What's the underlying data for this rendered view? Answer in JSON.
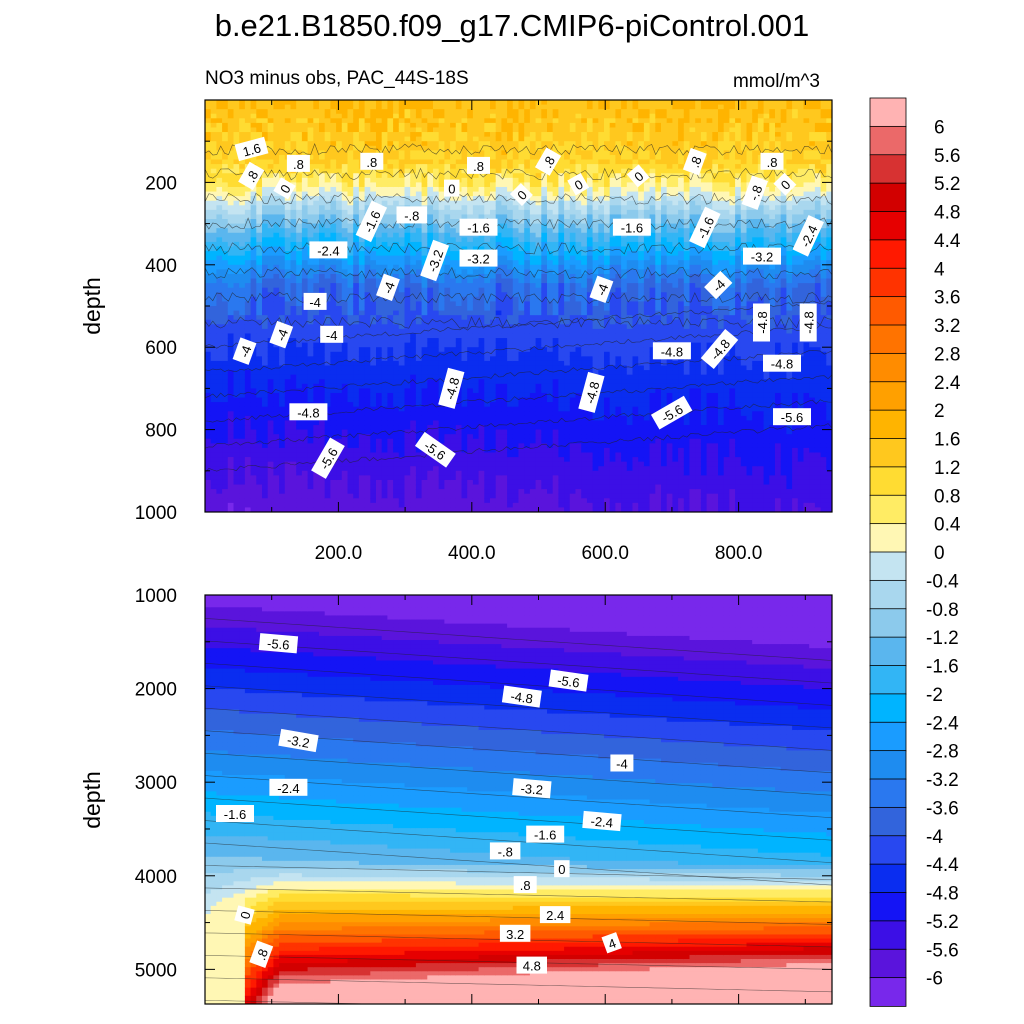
{
  "figure": {
    "title": "b.e21.B1850.f09_g17.CMIP6-piControl.001",
    "subtitle_left": "NO3 minus obs, PAC_44S-18S",
    "subtitle_right": "mmol/m^3"
  },
  "chart_data": [
    {
      "type": "heatmap",
      "panel": "upper",
      "title": "NO3 minus obs, PAC_44S-18S",
      "units": "mmol/m^3",
      "ylabel": "depth",
      "xlabel": "",
      "x_ticks": [
        "200.0",
        "400.0",
        "600.0",
        "800.0"
      ],
      "y_ticks": [
        "200",
        "400",
        "600",
        "800",
        "1000"
      ],
      "xlim": [
        0,
        940
      ],
      "ylim": [
        1000,
        0
      ],
      "profile": [
        {
          "depth": 0,
          "value": 1.6
        },
        {
          "depth": 150,
          "value": 1.2
        },
        {
          "depth": 210,
          "value": 0.4
        },
        {
          "depth": 250,
          "value": -0.4
        },
        {
          "depth": 300,
          "value": -1.2
        },
        {
          "depth": 350,
          "value": -2.0
        },
        {
          "depth": 400,
          "value": -2.8
        },
        {
          "depth": 450,
          "value": -3.6
        },
        {
          "depth": 520,
          "value": -4.0
        },
        {
          "depth": 600,
          "value": -4.4
        },
        {
          "depth": 700,
          "value": -4.8
        },
        {
          "depth": 800,
          "value": -5.2
        },
        {
          "depth": 900,
          "value": -5.6
        },
        {
          "depth": 1000,
          "value": -5.9
        }
      ],
      "contour_labels": [
        {
          "x": 70,
          "depth": 120,
          "text": "1.6",
          "rotate": -15
        },
        {
          "x": 70,
          "depth": 185,
          "text": ".8",
          "rotate": -60
        },
        {
          "x": 140,
          "depth": 155,
          "text": ".8",
          "rotate": 0
        },
        {
          "x": 250,
          "depth": 150,
          "text": ".8",
          "rotate": 0
        },
        {
          "x": 410,
          "depth": 160,
          "text": ".8",
          "rotate": 0
        },
        {
          "x": 515,
          "depth": 150,
          "text": ".8",
          "rotate": -60
        },
        {
          "x": 735,
          "depth": 150,
          "text": ".8",
          "rotate": -70
        },
        {
          "x": 850,
          "depth": 150,
          "text": ".8",
          "rotate": 0
        },
        {
          "x": 120,
          "depth": 215,
          "text": "0",
          "rotate": -60
        },
        {
          "x": 370,
          "depth": 215,
          "text": "0",
          "rotate": 0
        },
        {
          "x": 475,
          "depth": 230,
          "text": "0",
          "rotate": -45
        },
        {
          "x": 560,
          "depth": 205,
          "text": "0",
          "rotate": -30
        },
        {
          "x": 650,
          "depth": 185,
          "text": "0",
          "rotate": -40
        },
        {
          "x": 870,
          "depth": 205,
          "text": "0",
          "rotate": -45
        },
        {
          "x": 825,
          "depth": 225,
          "text": "-.8",
          "rotate": -70
        },
        {
          "x": 310,
          "depth": 280,
          "text": "-.8",
          "rotate": 0
        },
        {
          "x": 250,
          "depth": 295,
          "text": "-1.6",
          "rotate": -65
        },
        {
          "x": 410,
          "depth": 310,
          "text": "-1.6",
          "rotate": 0
        },
        {
          "x": 640,
          "depth": 310,
          "text": "-1.6",
          "rotate": 0
        },
        {
          "x": 750,
          "depth": 310,
          "text": "-1.6",
          "rotate": -65
        },
        {
          "x": 905,
          "depth": 330,
          "text": "-2.4",
          "rotate": -65
        },
        {
          "x": 185,
          "depth": 365,
          "text": "-2.4",
          "rotate": 0
        },
        {
          "x": 345,
          "depth": 390,
          "text": "-3.2",
          "rotate": -70
        },
        {
          "x": 410,
          "depth": 385,
          "text": "-3.2",
          "rotate": 0
        },
        {
          "x": 835,
          "depth": 380,
          "text": "-3.2",
          "rotate": 0
        },
        {
          "x": 275,
          "depth": 455,
          "text": "-4",
          "rotate": -70
        },
        {
          "x": 165,
          "depth": 490,
          "text": "-4",
          "rotate": 0
        },
        {
          "x": 595,
          "depth": 460,
          "text": "-4",
          "rotate": -70
        },
        {
          "x": 770,
          "depth": 450,
          "text": "-4",
          "rotate": -45
        },
        {
          "x": 115,
          "depth": 570,
          "text": "-4",
          "rotate": -70
        },
        {
          "x": 190,
          "depth": 570,
          "text": "-4",
          "rotate": 0
        },
        {
          "x": 60,
          "depth": 610,
          "text": "-4",
          "rotate": -70
        },
        {
          "x": 835,
          "depth": 540,
          "text": "-4.8",
          "rotate": -90
        },
        {
          "x": 905,
          "depth": 540,
          "text": "-4.8",
          "rotate": -90
        },
        {
          "x": 700,
          "depth": 610,
          "text": "-4.8",
          "rotate": 0
        },
        {
          "x": 772,
          "depth": 605,
          "text": "-4.8",
          "rotate": -50
        },
        {
          "x": 865,
          "depth": 640,
          "text": "-4.8",
          "rotate": 0
        },
        {
          "x": 370,
          "depth": 700,
          "text": "-4.8",
          "rotate": -75
        },
        {
          "x": 580,
          "depth": 710,
          "text": "-4.8",
          "rotate": -75
        },
        {
          "x": 155,
          "depth": 758,
          "text": "-4.8",
          "rotate": 0
        },
        {
          "x": 700,
          "depth": 760,
          "text": "-5.6",
          "rotate": -30
        },
        {
          "x": 880,
          "depth": 770,
          "text": "-5.6",
          "rotate": 0
        },
        {
          "x": 345,
          "depth": 850,
          "text": "-5.6",
          "rotate": 35
        },
        {
          "x": 185,
          "depth": 870,
          "text": "-5.6",
          "rotate": -60
        }
      ]
    },
    {
      "type": "heatmap",
      "panel": "lower",
      "ylabel": "depth",
      "xlabel": "",
      "y_ticks": [
        "1000",
        "2000",
        "3000",
        "4000",
        "5000"
      ],
      "xlim": [
        0,
        940
      ],
      "ylim": [
        5370,
        1000
      ],
      "description_values": "NO3 bias vs depth (1000-5400 m), strongest positive near bottom at right",
      "contour_labels": [
        {
          "x": 110,
          "depth": 1520,
          "text": "-5.6",
          "rotate": 5
        },
        {
          "x": 545,
          "depth": 1920,
          "text": "-5.6",
          "rotate": 8
        },
        {
          "x": 475,
          "depth": 2090,
          "text": "-4.8",
          "rotate": 8
        },
        {
          "x": 140,
          "depth": 2560,
          "text": "-3.2",
          "rotate": 10
        },
        {
          "x": 625,
          "depth": 2800,
          "text": "-4",
          "rotate": 0
        },
        {
          "x": 125,
          "depth": 3060,
          "text": "-2.4",
          "rotate": 0
        },
        {
          "x": 490,
          "depth": 3070,
          "text": "-3.2",
          "rotate": 5
        },
        {
          "x": 45,
          "depth": 3340,
          "text": "-1.6",
          "rotate": 0
        },
        {
          "x": 595,
          "depth": 3420,
          "text": "-2.4",
          "rotate": 5
        },
        {
          "x": 510,
          "depth": 3560,
          "text": "-1.6",
          "rotate": 0
        },
        {
          "x": 450,
          "depth": 3740,
          "text": "-.8",
          "rotate": 0
        },
        {
          "x": 535,
          "depth": 3930,
          "text": "0",
          "rotate": 0
        },
        {
          "x": 480,
          "depth": 4100,
          "text": ".8",
          "rotate": 0
        },
        {
          "x": 525,
          "depth": 4420,
          "text": "2.4",
          "rotate": 0
        },
        {
          "x": 465,
          "depth": 4620,
          "text": "3.2",
          "rotate": 0
        },
        {
          "x": 610,
          "depth": 4720,
          "text": "4",
          "rotate": -20
        },
        {
          "x": 490,
          "depth": 4960,
          "text": "4.8",
          "rotate": 0
        },
        {
          "x": 60,
          "depth": 4420,
          "text": "0",
          "rotate": -75
        },
        {
          "x": 85,
          "depth": 4840,
          "text": ".8",
          "rotate": -70
        }
      ]
    },
    {
      "type": "colorbar",
      "levels": [
        "6",
        "5.6",
        "5.2",
        "4.8",
        "4.4",
        "4",
        "3.6",
        "3.2",
        "2.8",
        "2.4",
        "2",
        "1.6",
        "1.2",
        "0.8",
        "0.4",
        "0",
        "-0.4",
        "-0.8",
        "-1.2",
        "-1.6",
        "-2",
        "-2.4",
        "-2.8",
        "-3.2",
        "-3.6",
        "-4",
        "-4.4",
        "-4.8",
        "-5.2",
        "-5.6",
        "-6"
      ],
      "colors": [
        "#ffb3b3",
        "#eb6969",
        "#d73232",
        "#d20000",
        "#e60000",
        "#ff1900",
        "#ff3300",
        "#ff5a00",
        "#ff7300",
        "#ff8c00",
        "#ffa000",
        "#ffb400",
        "#ffc81e",
        "#ffdc32",
        "#ffec64",
        "#fff7b4",
        "#c4e4f1",
        "#a9d7ee",
        "#8ccaec",
        "#5ab6ee",
        "#32b5f5",
        "#00b4ff",
        "#1a9cff",
        "#1e8cf0",
        "#2a78ef",
        "#3264dc",
        "#2848f0",
        "#0a2df0",
        "#1414f5",
        "#3c0fe6",
        "#5a14dc",
        "#7828eb"
      ]
    }
  ]
}
